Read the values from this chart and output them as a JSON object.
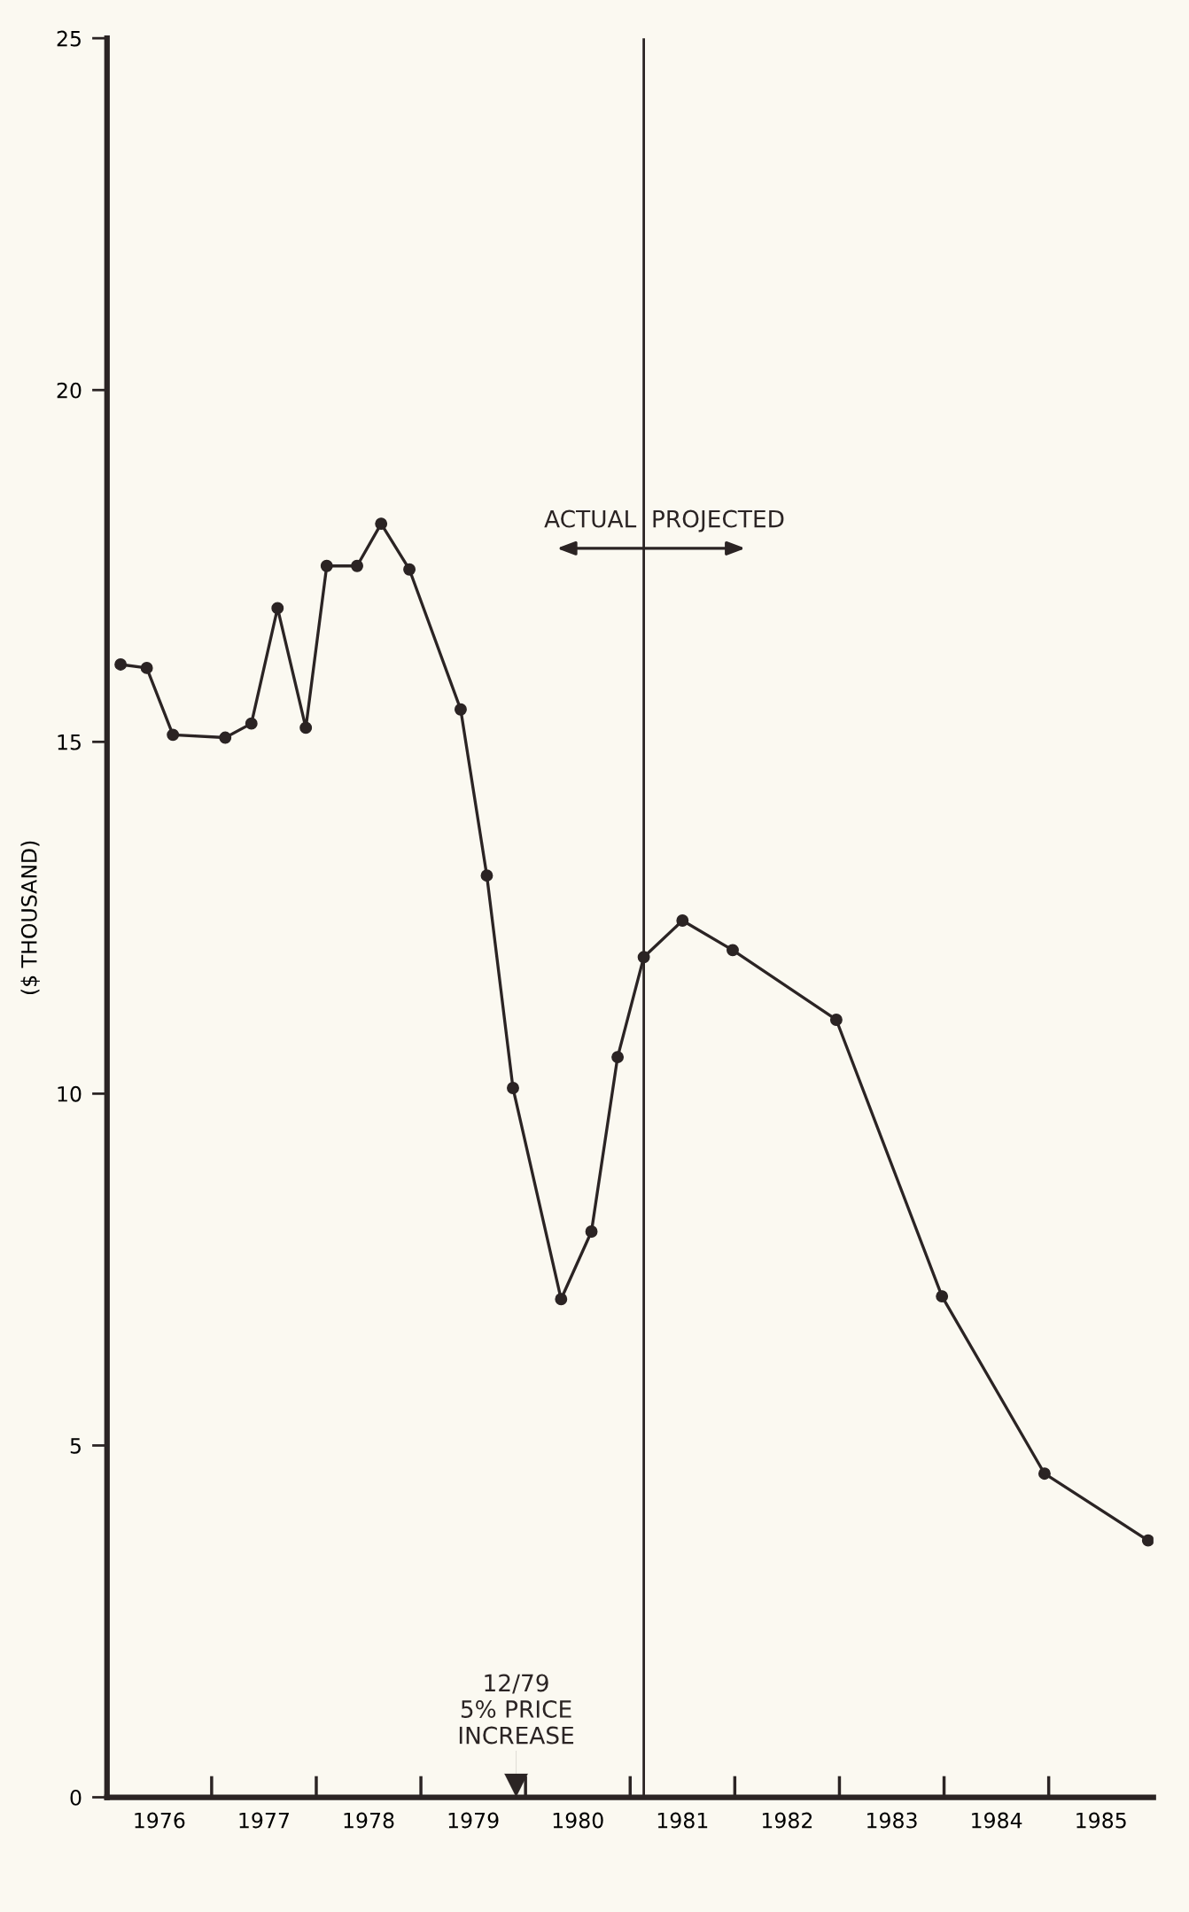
{
  "chart_data": {
    "type": "line",
    "ylabel": "($ THOUSAND)",
    "x": [
      1976.13,
      1976.38,
      1976.63,
      1977.13,
      1977.38,
      1977.63,
      1977.9,
      1978.1,
      1978.39,
      1978.62,
      1978.89,
      1979.38,
      1979.63,
      1979.88,
      1980.34,
      1980.63,
      1980.88,
      1981.13,
      1981.5,
      1981.98,
      1982.97,
      1983.98,
      1984.96,
      1985.95
    ],
    "values": [
      16.1,
      16.05,
      15.1,
      15.06,
      15.26,
      16.9,
      15.2,
      17.5,
      17.5,
      18.1,
      17.45,
      15.46,
      13.1,
      10.08,
      7.08,
      8.04,
      10.52,
      11.94,
      12.46,
      12.04,
      11.05,
      7.12,
      4.6,
      3.65
    ],
    "color": "#2b2424",
    "marker": "circle",
    "line_style": "solid",
    "xlim": [
      1976,
      1986
    ],
    "xticks": [
      {
        "value": 1976.5,
        "label": "1976"
      },
      {
        "value": 1977.5,
        "label": "1977"
      },
      {
        "value": 1978.5,
        "label": "1978"
      },
      {
        "value": 1979.5,
        "label": "1979"
      },
      {
        "value": 1980.5,
        "label": "1980"
      },
      {
        "value": 1981.5,
        "label": "1981"
      },
      {
        "value": 1982.5,
        "label": "1982"
      },
      {
        "value": 1983.5,
        "label": "1983"
      },
      {
        "value": 1984.5,
        "label": "1984"
      },
      {
        "value": 1985.5,
        "label": "1985"
      }
    ],
    "ylim": [
      0,
      25
    ],
    "yticks": [
      0,
      5,
      10,
      15,
      20,
      25
    ],
    "grid": false,
    "ref_lines": [
      {
        "axis": "x",
        "value": 1981.13,
        "color": "#2b2424"
      }
    ],
    "annotations": [
      "ACTUAL",
      "PROJECTED",
      "12/79\n5% PRICE\nINCREASE"
    ]
  }
}
